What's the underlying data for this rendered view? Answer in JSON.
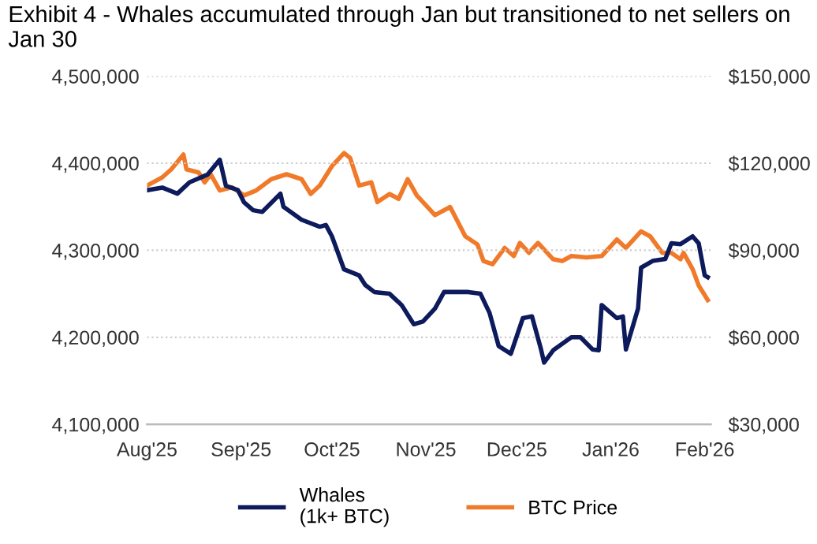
{
  "chart_data": {
    "type": "line",
    "title": "Exhibit 4 - Whales accumulated through Jan but transitioned to net sellers on Jan 30",
    "series": [
      {
        "name": "Whales\n(1k+ BTC)",
        "color": "#0d1a5c",
        "x": [
          "2025-08-01",
          "2025-08-06",
          "2025-08-11",
          "2025-08-15",
          "2025-08-21",
          "2025-08-25",
          "2025-08-27",
          "2025-08-31",
          "2025-09-02",
          "2025-09-05",
          "2025-09-08",
          "2025-09-14",
          "2025-09-15",
          "2025-09-21",
          "2025-09-27",
          "2025-09-29",
          "2025-10-01",
          "2025-10-05",
          "2025-10-10",
          "2025-10-12",
          "2025-10-15",
          "2025-10-20",
          "2025-10-24",
          "2025-10-28",
          "2025-10-31",
          "2025-11-04",
          "2025-11-07",
          "2025-11-12",
          "2025-11-15",
          "2025-11-19",
          "2025-11-22",
          "2025-11-25",
          "2025-11-29",
          "2025-12-03",
          "2025-12-06",
          "2025-12-09",
          "2025-12-10",
          "2025-12-13",
          "2025-12-19",
          "2025-12-22",
          "2025-12-26",
          "2025-12-28",
          "2025-12-29",
          "2026-01-03",
          "2026-01-05",
          "2026-01-06",
          "2026-01-10",
          "2026-01-11",
          "2026-01-15",
          "2026-01-19",
          "2026-01-21",
          "2026-01-24",
          "2026-01-28",
          "2026-01-30",
          "2026-02-01",
          "2026-02-02"
        ],
        "values": [
          4369000,
          4372000,
          4365000,
          4378000,
          4387000,
          4404000,
          4374000,
          4369000,
          4355000,
          4346000,
          4344000,
          4365000,
          4350000,
          4335000,
          4327000,
          4329000,
          4316000,
          4278000,
          4271000,
          4260000,
          4252000,
          4250000,
          4237000,
          4215000,
          4218000,
          4233000,
          4252000,
          4252000,
          4252000,
          4250000,
          4228000,
          4190000,
          4181000,
          4222000,
          4224000,
          4186000,
          4171000,
          4185000,
          4200000,
          4200000,
          4186000,
          4185000,
          4237000,
          4222000,
          4224000,
          4186000,
          4233000,
          4280000,
          4288000,
          4290000,
          4308000,
          4307000,
          4316000,
          4308000,
          4271000,
          4269000
        ]
      },
      {
        "name": "BTC Price",
        "color": "#f07a2a",
        "axis": "y2",
        "x": [
          "2025-08-01",
          "2025-08-06",
          "2025-08-09",
          "2025-08-13",
          "2025-08-14",
          "2025-08-18",
          "2025-08-20",
          "2025-08-22",
          "2025-08-25",
          "2025-08-29",
          "2025-09-02",
          "2025-09-06",
          "2025-09-11",
          "2025-09-16",
          "2025-09-21",
          "2025-09-24",
          "2025-09-27",
          "2025-10-01",
          "2025-10-05",
          "2025-10-07",
          "2025-10-10",
          "2025-10-14",
          "2025-10-16",
          "2025-10-20",
          "2025-10-23",
          "2025-10-26",
          "2025-10-29",
          "2025-11-04",
          "2025-11-09",
          "2025-11-14",
          "2025-11-18",
          "2025-11-20",
          "2025-11-23",
          "2025-11-27",
          "2025-11-30",
          "2025-12-02",
          "2025-12-05",
          "2025-12-08",
          "2025-12-13",
          "2025-12-16",
          "2025-12-19",
          "2025-12-24",
          "2025-12-29",
          "2026-01-03",
          "2026-01-06",
          "2026-01-11",
          "2026-01-14",
          "2026-01-18",
          "2026-01-21",
          "2026-01-24",
          "2026-01-25",
          "2026-01-28",
          "2026-01-30",
          "2026-02-02"
        ],
        "values": [
          112300,
          115100,
          117900,
          123000,
          117900,
          116800,
          113400,
          116200,
          110600,
          111700,
          108900,
          110600,
          114500,
          116200,
          114500,
          109400,
          112300,
          119000,
          123500,
          121800,
          112300,
          113400,
          106600,
          109400,
          107700,
          114500,
          108900,
          102100,
          104900,
          94800,
          92000,
          86300,
          85200,
          90800,
          88000,
          92500,
          89100,
          92500,
          86900,
          86300,
          88000,
          87500,
          88000,
          93700,
          90800,
          96500,
          94800,
          89100,
          89100,
          86900,
          89100,
          83500,
          77900,
          72800
        ]
      }
    ],
    "xlim": [
      "2025-08-01",
      "2026-02-03"
    ],
    "xticks": [
      {
        "value": "2025-08-01",
        "label": "Aug'25"
      },
      {
        "value": "2025-09-01",
        "label": "Sep'25"
      },
      {
        "value": "2025-10-01",
        "label": "Oct'25"
      },
      {
        "value": "2025-11-01",
        "label": "Nov'25"
      },
      {
        "value": "2025-12-01",
        "label": "Dec'25"
      },
      {
        "value": "2026-01-01",
        "label": "Jan'26"
      },
      {
        "value": "2026-02-01",
        "label": "Feb'26"
      }
    ],
    "ylim": [
      4100000,
      4500000
    ],
    "yticks": [
      {
        "value": 4100000,
        "label": "4,100,000"
      },
      {
        "value": 4200000,
        "label": "4,200,000"
      },
      {
        "value": 4300000,
        "label": "4,300,000"
      },
      {
        "value": 4400000,
        "label": "4,400,000"
      },
      {
        "value": 4500000,
        "label": "4,500,000"
      }
    ],
    "y2lim": [
      30000,
      150000
    ],
    "y2ticks": [
      {
        "value": 30000,
        "label": "$30,000"
      },
      {
        "value": 60000,
        "label": "$60,000"
      },
      {
        "value": 90000,
        "label": "$90,000"
      },
      {
        "value": 120000,
        "label": "$120,000"
      },
      {
        "value": 150000,
        "label": "$150,000"
      }
    ],
    "grid": "y",
    "legend": "bottom",
    "line_style": "solid",
    "marker": "none"
  }
}
